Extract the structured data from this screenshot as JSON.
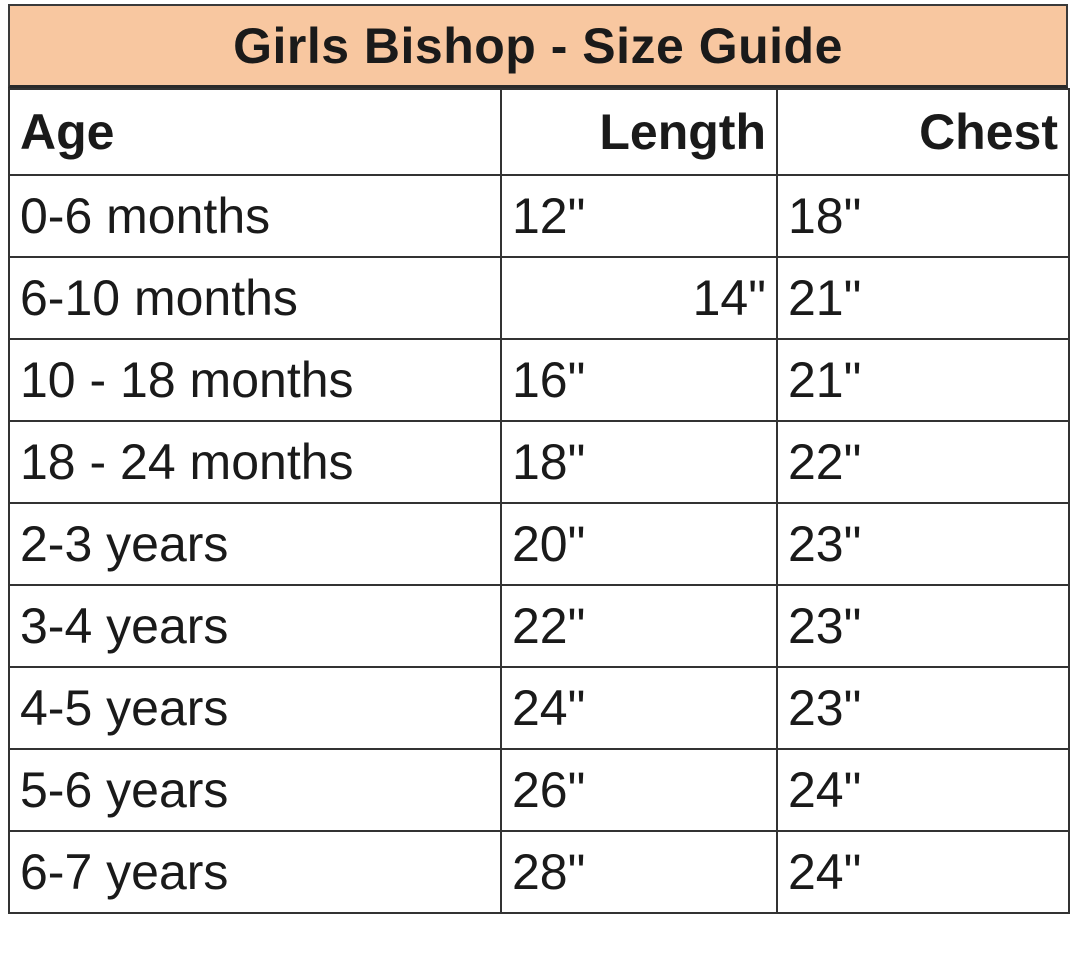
{
  "title": "Girls Bishop - Size Guide",
  "colors": {
    "title_background": "#f8c7a0",
    "grid_lines": "#333333",
    "text": "#1a1a1a"
  },
  "table": {
    "headers": [
      "Age",
      "Length",
      "Chest"
    ],
    "rows": [
      {
        "age": "0-6 months",
        "length": "12\"",
        "chest": "18\"",
        "length_align": "left"
      },
      {
        "age": "6-10 months",
        "length": "14\"",
        "chest": "21\"",
        "length_align": "right"
      },
      {
        "age": "10 - 18 months",
        "length": "16\"",
        "chest": "21\"",
        "length_align": "left"
      },
      {
        "age": "18 - 24 months",
        "length": "18\"",
        "chest": "22\"",
        "length_align": "left"
      },
      {
        "age": "2-3 years",
        "length": "20\"",
        "chest": "23\"",
        "length_align": "left"
      },
      {
        "age": "3-4 years",
        "length": "22\"",
        "chest": "23\"",
        "length_align": "left"
      },
      {
        "age": "4-5 years",
        "length": "24\"",
        "chest": "23\"",
        "length_align": "left"
      },
      {
        "age": "5-6 years",
        "length": "26\"",
        "chest": "24\"",
        "length_align": "left"
      },
      {
        "age": "6-7 years",
        "length": "28\"",
        "chest": "24\"",
        "length_align": "left"
      }
    ]
  }
}
